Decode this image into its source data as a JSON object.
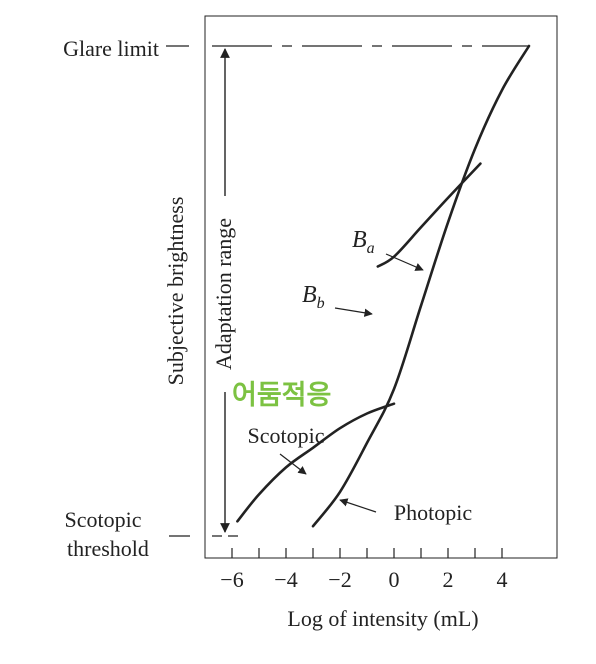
{
  "chart_data": {
    "type": "line",
    "xlabel": "Log of intensity (mL)",
    "ylabel": "Subjective brightness",
    "xlim": [
      -7,
      5.5
    ],
    "ticks": [
      -6,
      -4,
      -2,
      0,
      2,
      4
    ],
    "tick_labels": [
      "−6",
      "−4",
      "−2",
      "0",
      "2",
      "4"
    ],
    "levels": {
      "glare_limit": "Glare limit",
      "scotopic_threshold": [
        "Scotopic",
        "threshold"
      ]
    },
    "adaptation_range_label": "Adaptation range",
    "series": [
      {
        "name": "Photopic",
        "x": [
          -3.0,
          -2.0,
          -1.0,
          0.0,
          1.0,
          2.0,
          3.0,
          4.0,
          5.0
        ],
        "y": [
          0.02,
          0.09,
          0.19,
          0.3,
          0.47,
          0.64,
          0.79,
          0.91,
          1.0
        ]
      },
      {
        "name": "Scotopic",
        "x": [
          -5.8,
          -5.0,
          -4.0,
          -3.0,
          -2.0,
          -1.0,
          0.0
        ],
        "y": [
          0.03,
          0.085,
          0.14,
          0.18,
          0.22,
          0.25,
          0.27
        ]
      },
      {
        "name": "Adaptation",
        "x": [
          -0.6,
          0.0,
          1.0,
          2.0,
          3.2
        ],
        "y": [
          0.55,
          0.57,
          0.63,
          0.69,
          0.76
        ]
      }
    ],
    "annotations": [
      {
        "text": "B",
        "subscript": "a"
      },
      {
        "text": "B",
        "subscript": "b"
      }
    ],
    "handwritten_note": "어둠적응",
    "colors": {
      "ink": "#222222",
      "note": "#7cc242"
    }
  }
}
